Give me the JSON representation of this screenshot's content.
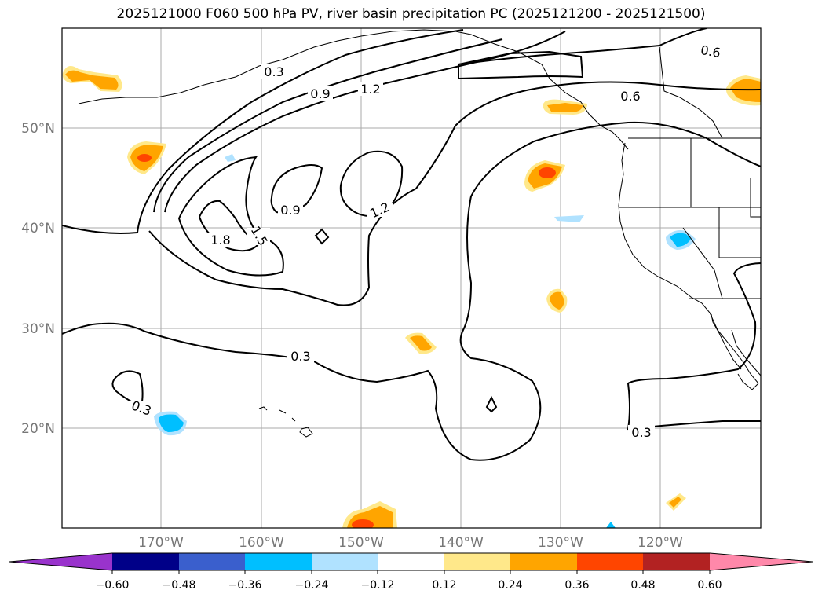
{
  "title": "2025121000 F060 500 hPa PV, river basin precipitation PC (2025121200 - 2025121500)",
  "lat_labels": [
    "50°N",
    "40°N",
    "30°N",
    "20°N"
  ],
  "lon_labels": [
    "170°W",
    "160°W",
    "150°W",
    "140°W",
    "130°W",
    "120°W"
  ],
  "contour_labels": [
    "0.3",
    "0.9",
    "1.2",
    "1.8",
    "0.9",
    "1.5",
    "1.2",
    "0.3",
    "0.3",
    "0.3",
    "0.6",
    "0.6"
  ],
  "colorbar": {
    "colors": [
      "#9933cc",
      "#000088",
      "#3a5fcd",
      "#00bfff",
      "#b0e2ff",
      "#ffffff",
      "#ffe88a",
      "#ffa500",
      "#ff4500",
      "#b22222",
      "#ff88aa"
    ],
    "tick_labels": [
      "−0.60",
      "−0.48",
      "−0.36",
      "−0.24",
      "−0.12",
      "0.12",
      "0.24",
      "0.36",
      "0.48",
      "0.60"
    ]
  }
}
